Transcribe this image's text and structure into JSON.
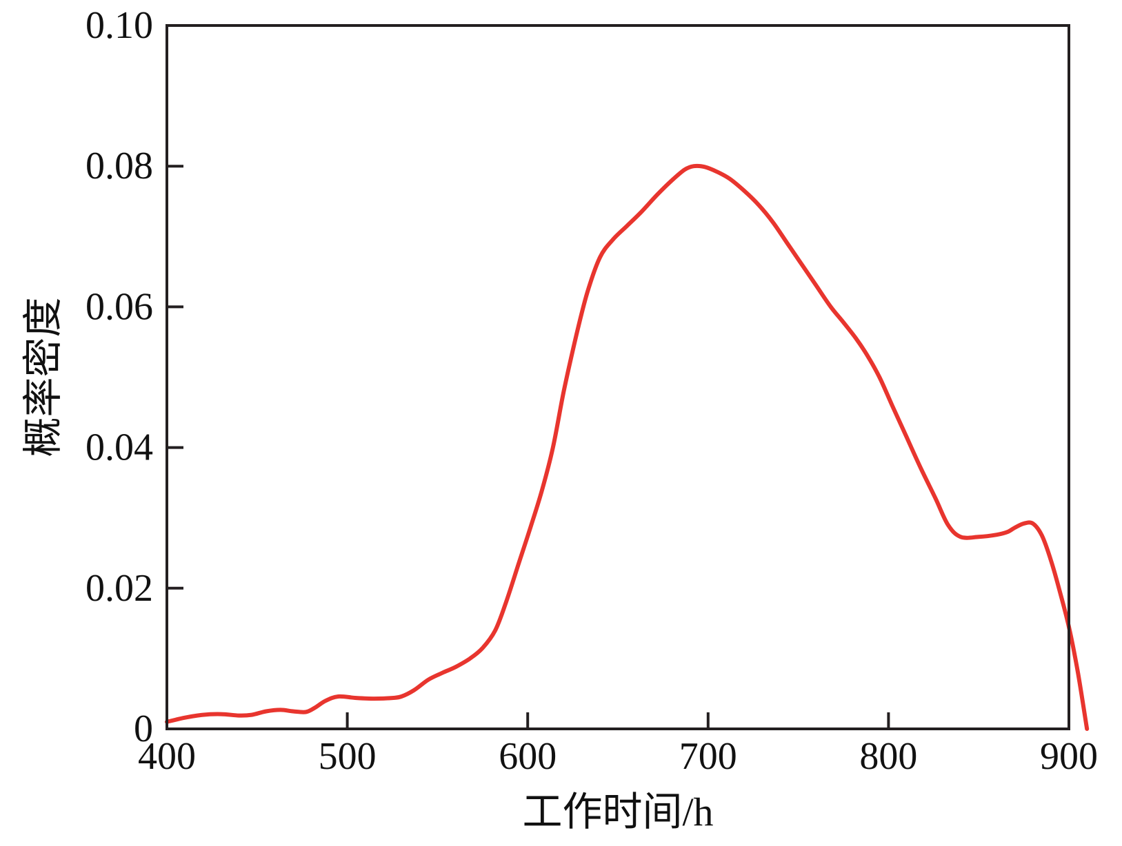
{
  "chart_data": {
    "type": "line",
    "title": "",
    "xlabel": "工作时间/h",
    "ylabel": "概率密度",
    "xlim": [
      400,
      900
    ],
    "ylim": [
      0,
      0.1
    ],
    "xticks": [
      {
        "value": 400,
        "label": "400"
      },
      {
        "value": 500,
        "label": "500"
      },
      {
        "value": 600,
        "label": "600"
      },
      {
        "value": 700,
        "label": "700"
      },
      {
        "value": 800,
        "label": "800"
      },
      {
        "value": 900,
        "label": "900"
      }
    ],
    "yticks": [
      {
        "value": 0,
        "label": "0"
      },
      {
        "value": 0.02,
        "label": "0.02"
      },
      {
        "value": 0.04,
        "label": "0.04"
      },
      {
        "value": 0.06,
        "label": "0.06"
      },
      {
        "value": 0.08,
        "label": "0.08"
      },
      {
        "value": 0.1,
        "label": "0.10"
      }
    ],
    "grid": false,
    "series": [
      {
        "color": "#e8352e",
        "points": [
          [
            400,
            0.001
          ],
          [
            410,
            0.0016
          ],
          [
            420,
            0.002
          ],
          [
            430,
            0.0021
          ],
          [
            440,
            0.0019
          ],
          [
            447,
            0.002
          ],
          [
            455,
            0.0025
          ],
          [
            463,
            0.0027
          ],
          [
            470,
            0.0025
          ],
          [
            477,
            0.0024
          ],
          [
            482,
            0.003
          ],
          [
            488,
            0.004
          ],
          [
            495,
            0.0046
          ],
          [
            505,
            0.0044
          ],
          [
            515,
            0.0043
          ],
          [
            525,
            0.0044
          ],
          [
            530,
            0.0046
          ],
          [
            537,
            0.0055
          ],
          [
            545,
            0.007
          ],
          [
            553,
            0.008
          ],
          [
            560,
            0.0088
          ],
          [
            568,
            0.01
          ],
          [
            575,
            0.0115
          ],
          [
            582,
            0.014
          ],
          [
            588,
            0.018
          ],
          [
            595,
            0.0235
          ],
          [
            602,
            0.029
          ],
          [
            608,
            0.034
          ],
          [
            614,
            0.04
          ],
          [
            620,
            0.048
          ],
          [
            627,
            0.056
          ],
          [
            633,
            0.062
          ],
          [
            640,
            0.067
          ],
          [
            647,
            0.0695
          ],
          [
            655,
            0.0715
          ],
          [
            663,
            0.0735
          ],
          [
            672,
            0.076
          ],
          [
            680,
            0.078
          ],
          [
            687,
            0.0795
          ],
          [
            692,
            0.08
          ],
          [
            698,
            0.0799
          ],
          [
            705,
            0.0792
          ],
          [
            712,
            0.0782
          ],
          [
            720,
            0.0765
          ],
          [
            728,
            0.0745
          ],
          [
            736,
            0.072
          ],
          [
            744,
            0.069
          ],
          [
            752,
            0.066
          ],
          [
            760,
            0.063
          ],
          [
            768,
            0.06
          ],
          [
            775,
            0.0578
          ],
          [
            782,
            0.0555
          ],
          [
            788,
            0.0532
          ],
          [
            795,
            0.05
          ],
          [
            802,
            0.046
          ],
          [
            810,
            0.0415
          ],
          [
            818,
            0.037
          ],
          [
            826,
            0.0328
          ],
          [
            833,
            0.029
          ],
          [
            840,
            0.0273
          ],
          [
            850,
            0.0273
          ],
          [
            860,
            0.0276
          ],
          [
            866,
            0.028
          ],
          [
            870,
            0.0286
          ],
          [
            875,
            0.0292
          ],
          [
            880,
            0.0292
          ],
          [
            885,
            0.0275
          ],
          [
            890,
            0.024
          ],
          [
            895,
            0.0195
          ],
          [
            900,
            0.0145
          ],
          [
            905,
            0.008
          ],
          [
            910,
            0.0
          ]
        ]
      }
    ]
  }
}
